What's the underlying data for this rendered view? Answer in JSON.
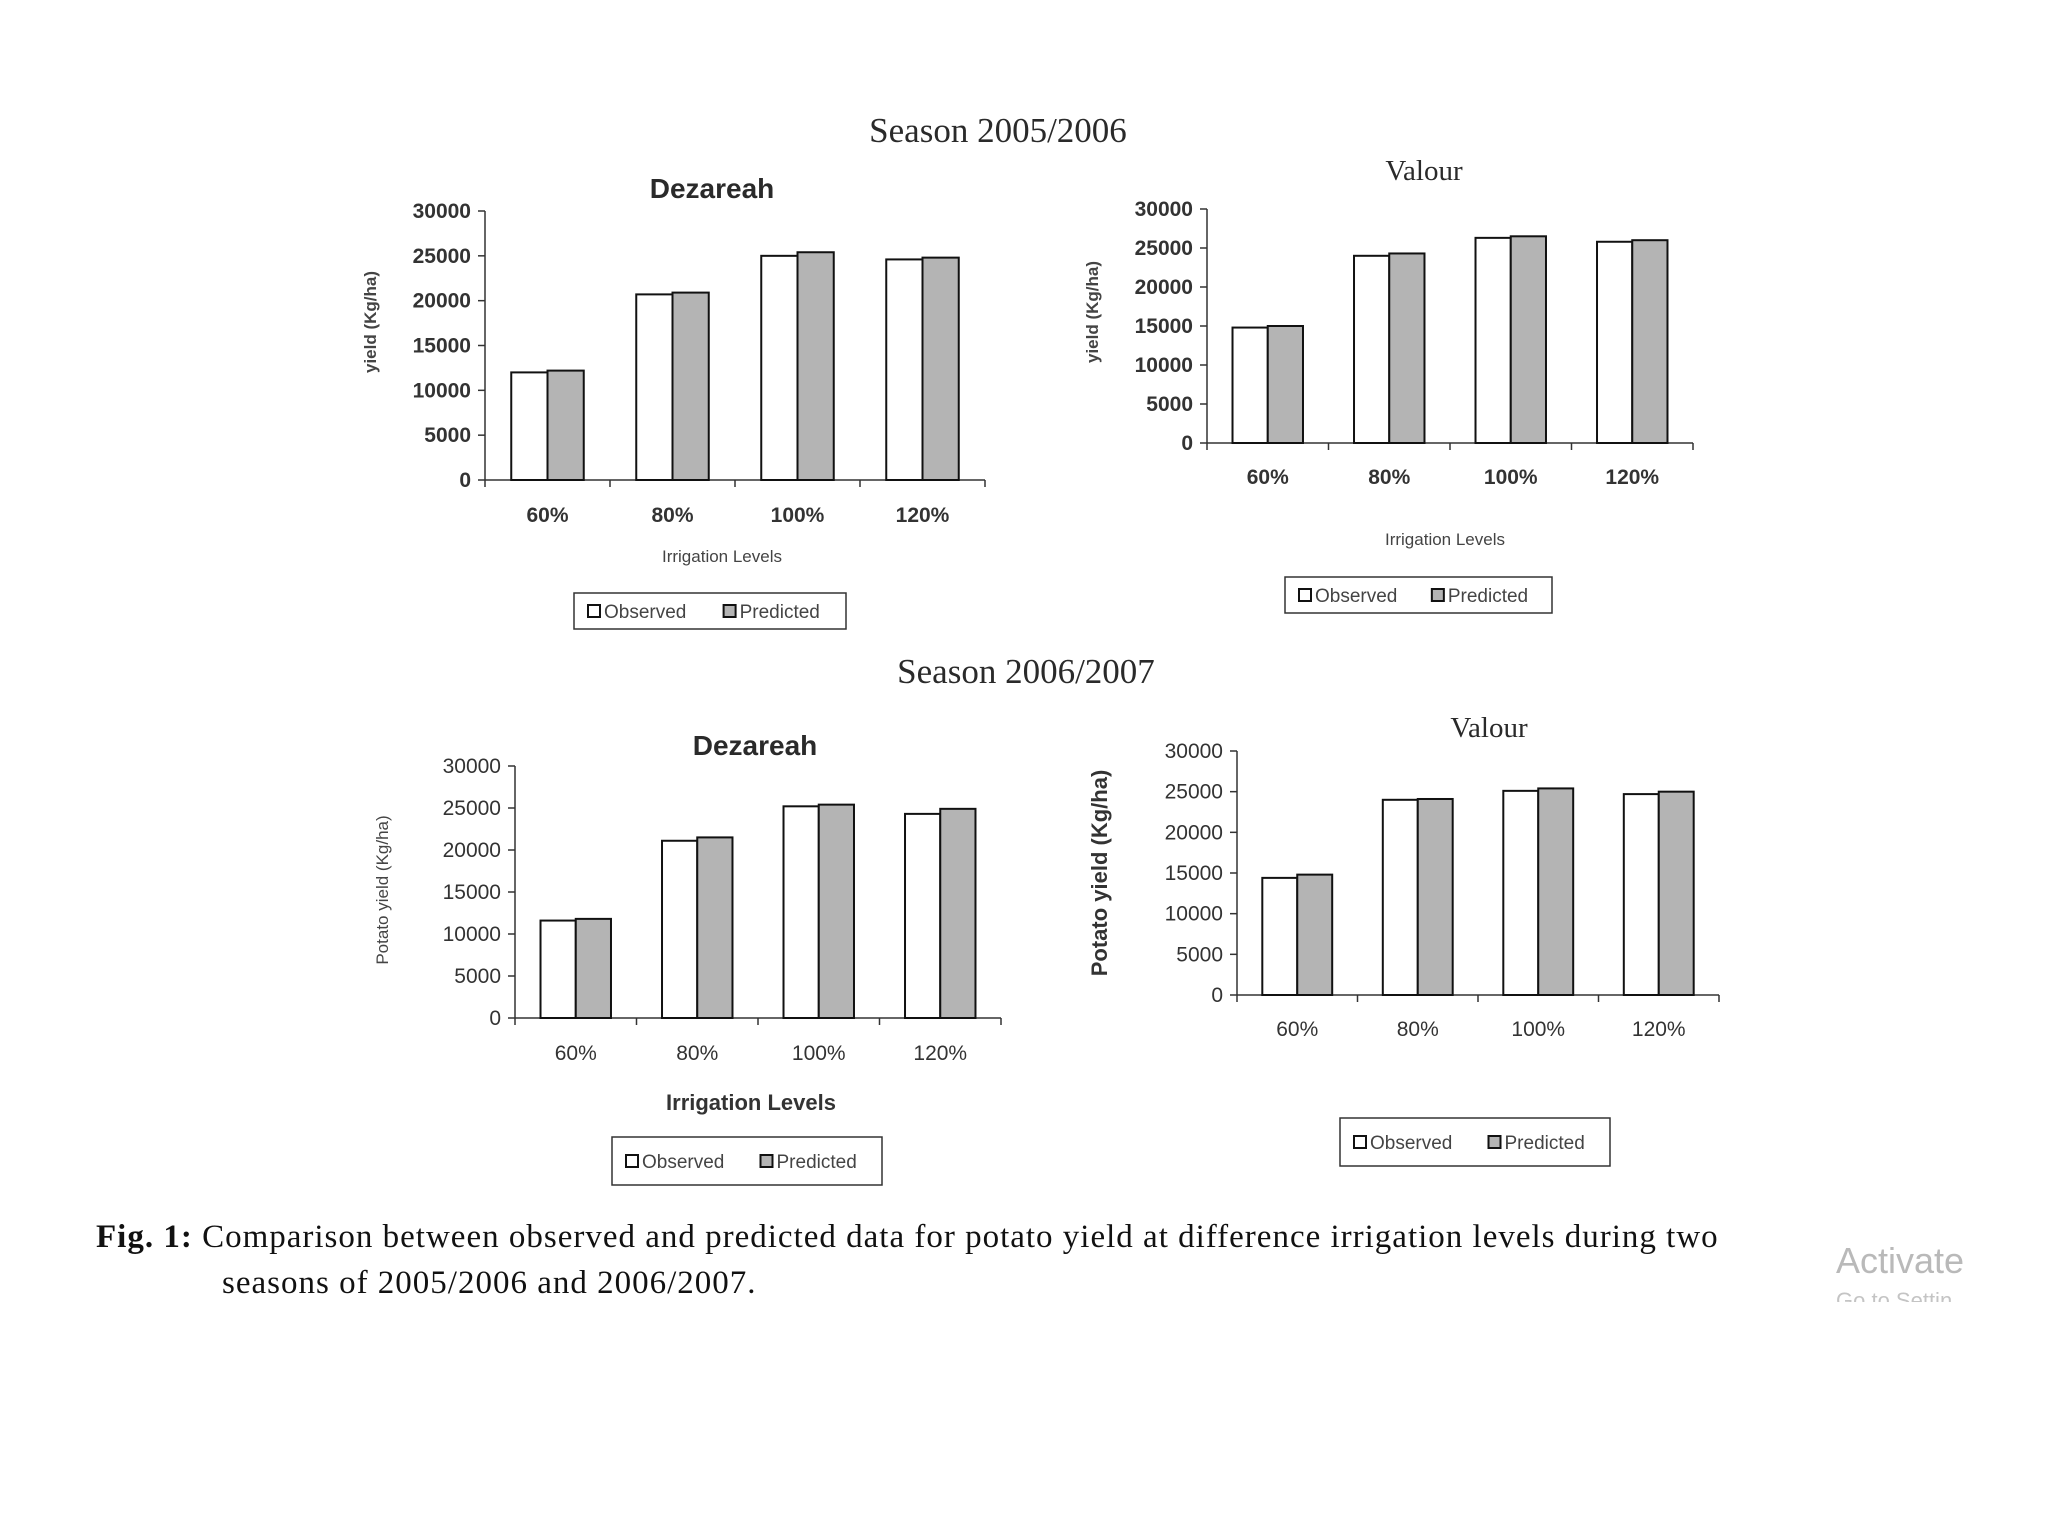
{
  "figure": {
    "caption_label": "Fig. 1:",
    "caption_line1": "Comparison between observed and predicted data for potato yield at difference irrigation levels during two",
    "caption_line2": "seasons of 2005/2006 and 2006/2007.",
    "watermark": "Activate",
    "watermark_sub": "Go to Settin"
  },
  "seasons": [
    {
      "title": "Season 2005/2006"
    },
    {
      "title": "Season 2006/2007"
    }
  ],
  "colors": {
    "observed": "#ffffff",
    "predicted": "#b4b4b4",
    "stroke": "#111111",
    "axis": "#333333"
  },
  "chart_data": [
    {
      "type": "bar",
      "season": "Season 2005/2006",
      "title": "Dezareah",
      "categories": [
        "60%",
        "80%",
        "100%",
        "120%"
      ],
      "series": [
        {
          "name": "Observed",
          "values": [
            12000,
            20700,
            25000,
            24600
          ]
        },
        {
          "name": "Predicted",
          "values": [
            12200,
            20900,
            25400,
            24800
          ]
        }
      ],
      "xlabel": "Irrigation Levels",
      "ylabel": "yield (Kg/ha)",
      "ylim": [
        0,
        30000
      ],
      "yticks": [
        "30000",
        "25000",
        "20000",
        "15000",
        "10000",
        "5000",
        "0"
      ],
      "legend": [
        "Observed",
        "Predicted"
      ],
      "legend_position": "bottom"
    },
    {
      "type": "bar",
      "season": "Season 2005/2006",
      "title": "Valour",
      "categories": [
        "60%",
        "80%",
        "100%",
        "120%"
      ],
      "series": [
        {
          "name": "Observed",
          "values": [
            14800,
            24000,
            26300,
            25800
          ]
        },
        {
          "name": "Predicted",
          "values": [
            15000,
            24300,
            26500,
            26000
          ]
        }
      ],
      "xlabel": "Irrigation Levels",
      "ylabel": "yield (Kg/ha)",
      "ylim": [
        0,
        30000
      ],
      "yticks": [
        "30000",
        "25000",
        "20000",
        "15000",
        "10000",
        "5000",
        "0"
      ],
      "legend": [
        "Observed",
        "Predicted"
      ],
      "legend_position": "bottom"
    },
    {
      "type": "bar",
      "season": "Season 2006/2007",
      "title": "Dezareah",
      "categories": [
        "60%",
        "80%",
        "100%",
        "120%"
      ],
      "series": [
        {
          "name": "Observed",
          "values": [
            11600,
            21100,
            25200,
            24300
          ]
        },
        {
          "name": "Predicted",
          "values": [
            11800,
            21500,
            25400,
            24900
          ]
        }
      ],
      "xlabel": "Irrigation Levels",
      "ylabel": "Potato yield (Kg/ha)",
      "ylim": [
        0,
        30000
      ],
      "yticks": [
        "30000",
        "25000",
        "20000",
        "15000",
        "10000",
        "5000",
        "0"
      ],
      "legend": [
        "Observed",
        "Predicted"
      ],
      "legend_position": "bottom"
    },
    {
      "type": "bar",
      "season": "Season 2006/2007",
      "title": "Valour",
      "categories": [
        "60%",
        "80%",
        "100%",
        "120%"
      ],
      "series": [
        {
          "name": "Observed",
          "values": [
            14400,
            24000,
            25100,
            24700
          ]
        },
        {
          "name": "Predicted",
          "values": [
            14800,
            24100,
            25400,
            25000
          ]
        }
      ],
      "xlabel": "",
      "ylabel": "Potato yield (Kg/ha)",
      "ylim": [
        0,
        30000
      ],
      "yticks": [
        "30000",
        "25000",
        "20000",
        "15000",
        "10000",
        "5000",
        "0"
      ],
      "legend": [
        "Observed",
        "Predicted"
      ],
      "legend_position": "bottom"
    }
  ]
}
